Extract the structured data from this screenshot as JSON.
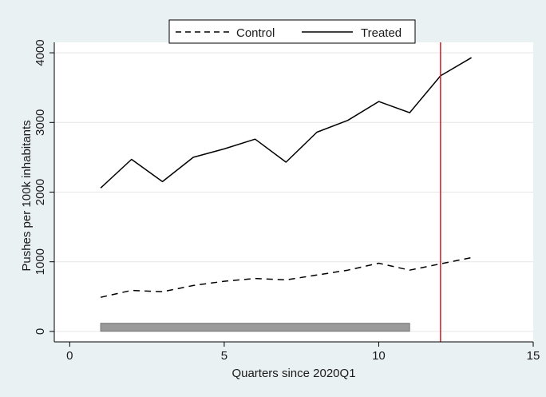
{
  "chart_data": {
    "type": "line",
    "xlabel": "Quarters since 2020Q1",
    "ylabel": "Pushes per 100k inhabitants",
    "xlim": [
      -0.5,
      15
    ],
    "ylim": [
      -150,
      4150
    ],
    "xticks": [
      0,
      5,
      10,
      15
    ],
    "yticks": [
      0,
      1000,
      2000,
      3000,
      4000
    ],
    "grid": "horizontal",
    "legend_position": "top-center",
    "series": [
      {
        "name": "Control",
        "style": "dashed",
        "color": "#000000",
        "x": [
          1,
          2,
          3,
          4,
          5,
          6,
          7,
          8,
          9,
          10,
          11,
          12,
          13
        ],
        "y": [
          490,
          590,
          570,
          660,
          720,
          760,
          740,
          810,
          880,
          980,
          880,
          970,
          1060
        ]
      },
      {
        "name": "Treated",
        "style": "solid",
        "color": "#000000",
        "x": [
          1,
          2,
          3,
          4,
          5,
          6,
          7,
          8,
          9,
          10,
          11,
          12,
          13
        ],
        "y": [
          2060,
          2470,
          2150,
          2500,
          2620,
          2760,
          2430,
          2860,
          3030,
          3300,
          3140,
          3670,
          3930
        ]
      }
    ],
    "bar_range": {
      "x_start": 1,
      "x_end": 11,
      "y": 60,
      "color": "#999999"
    },
    "vertical_line": {
      "x": 12,
      "color": "#cc2222"
    }
  }
}
